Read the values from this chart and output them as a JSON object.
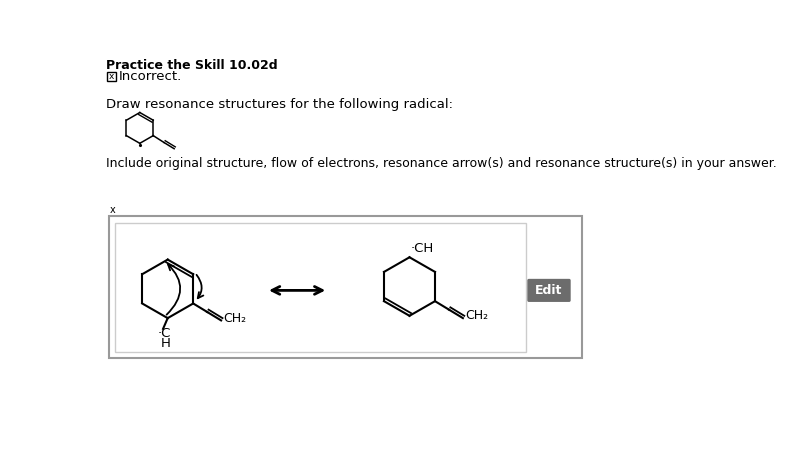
{
  "title": "Practice the Skill 10.02d",
  "incorrect_text": "Incorrect.",
  "draw_text": "Draw resonance structures for the following radical:",
  "include_text": "Include original structure, flow of electrons, resonance arrow(s) and resonance structure(s) in your answer.",
  "bg_color": "#ffffff",
  "edit_btn_color": "#6c6c6c",
  "edit_btn_text": "Edit",
  "edit_text_color": "#ffffff"
}
